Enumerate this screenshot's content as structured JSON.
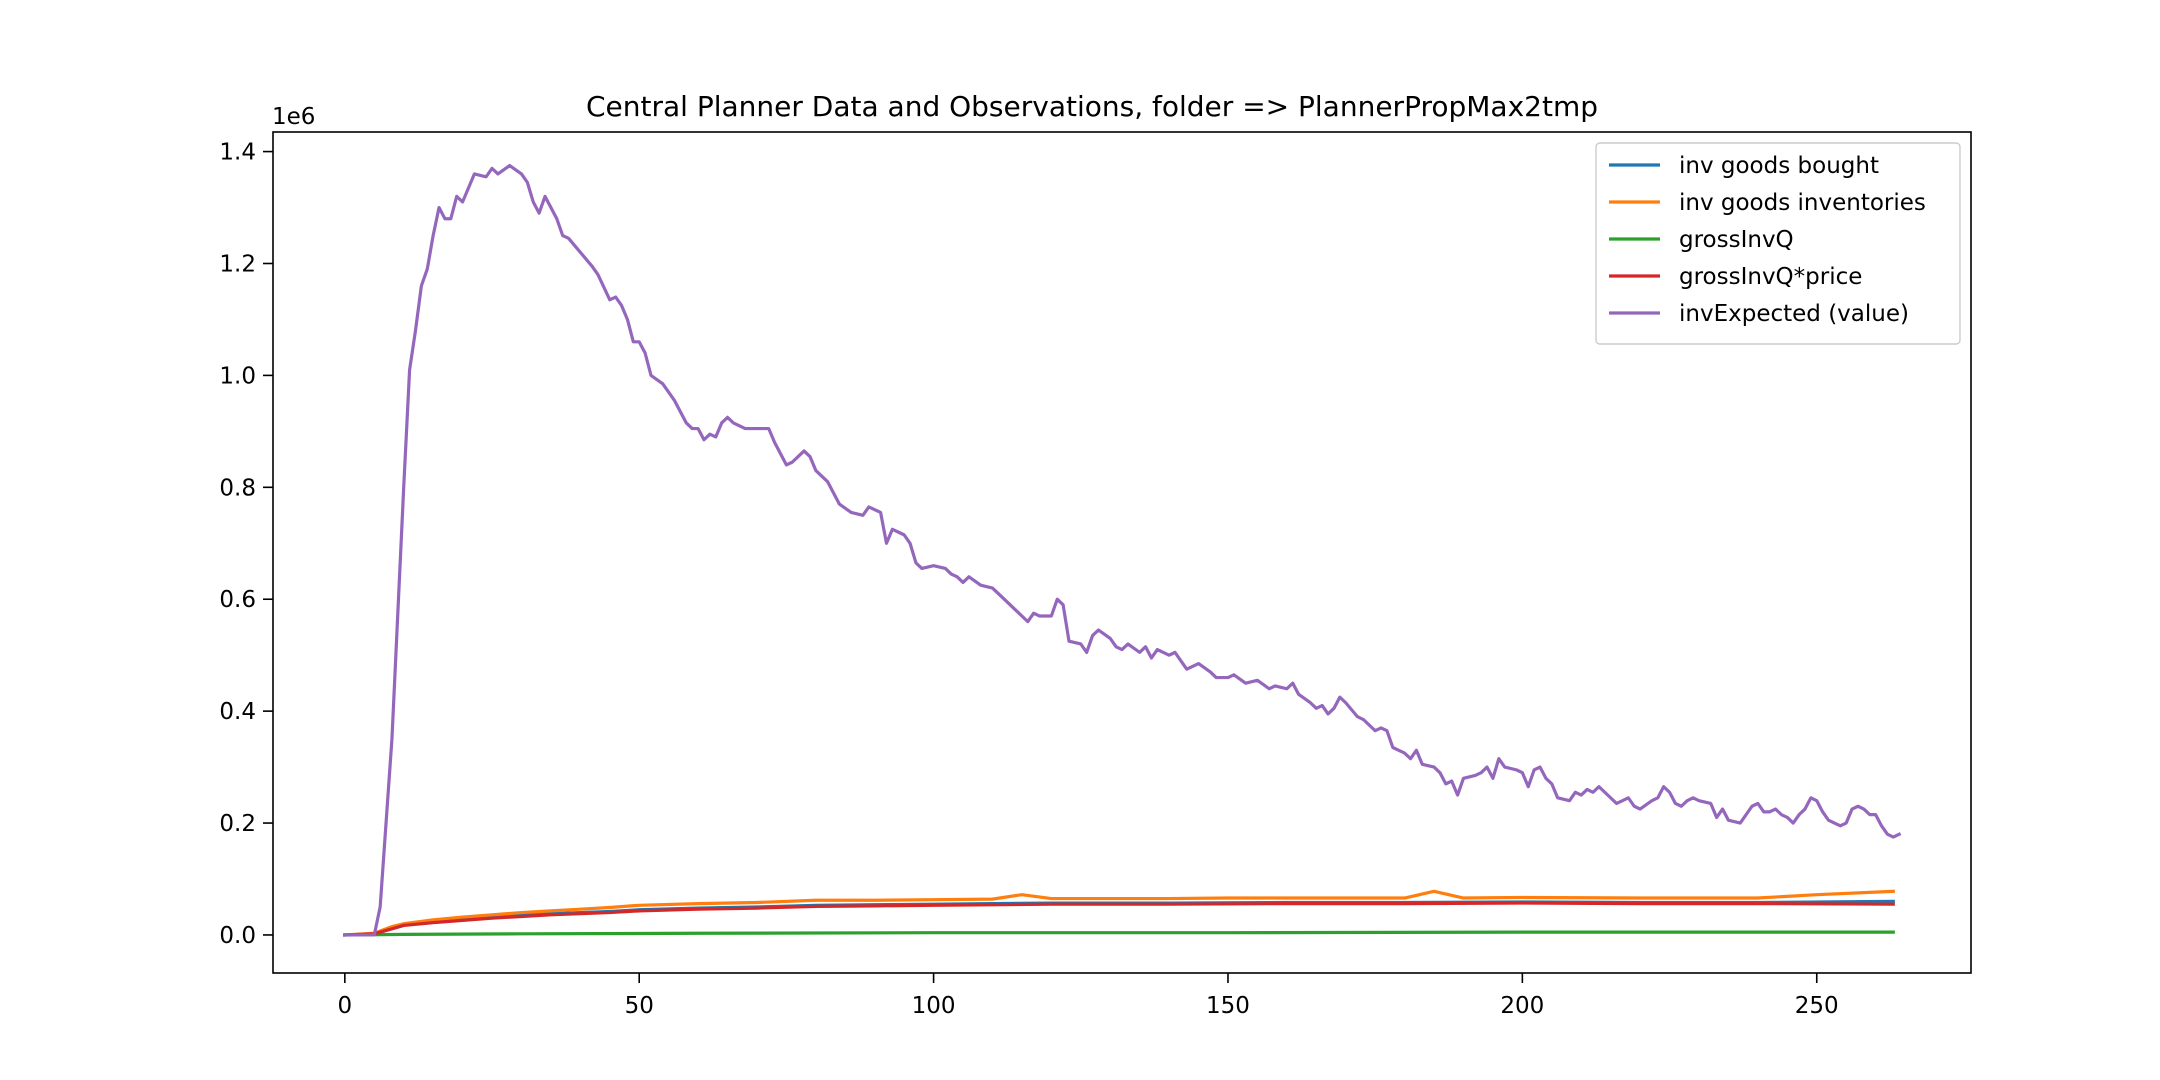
{
  "chart_data": {
    "type": "line",
    "title": "Central Planner Data and Observations, folder => PlannerPropMax2tmp",
    "xlabel": "",
    "ylabel": "",
    "y_offset_label": "1e6",
    "xlim": [
      -12.2,
      276.2
    ],
    "ylim": [
      -0.068,
      1.435
    ],
    "y_scale_note": "values in units of 1e6",
    "x_ticks": [
      0,
      50,
      100,
      150,
      200,
      250
    ],
    "x_tick_labels": [
      "0",
      "50",
      "100",
      "150",
      "200",
      "250"
    ],
    "y_ticks": [
      0.0,
      0.2,
      0.4,
      0.6,
      0.8,
      1.0,
      1.2,
      1.4
    ],
    "y_tick_labels": [
      "0.0",
      "0.2",
      "0.4",
      "0.6",
      "0.8",
      "1.0",
      "1.2",
      "1.4"
    ],
    "grid": false,
    "legend_position": "top-right",
    "series": [
      {
        "name": "inv goods bought",
        "color": "#1f77b4",
        "points": [
          [
            0,
            0
          ],
          [
            5,
            0.002
          ],
          [
            8,
            0.012
          ],
          [
            10,
            0.018
          ],
          [
            15,
            0.024
          ],
          [
            20,
            0.028
          ],
          [
            25,
            0.032
          ],
          [
            30,
            0.036
          ],
          [
            35,
            0.038
          ],
          [
            40,
            0.04
          ],
          [
            45,
            0.042
          ],
          [
            50,
            0.045
          ],
          [
            60,
            0.048
          ],
          [
            70,
            0.05
          ],
          [
            80,
            0.053
          ],
          [
            90,
            0.054
          ],
          [
            100,
            0.055
          ],
          [
            120,
            0.057
          ],
          [
            140,
            0.057
          ],
          [
            160,
            0.058
          ],
          [
            180,
            0.058
          ],
          [
            200,
            0.059
          ],
          [
            220,
            0.058
          ],
          [
            240,
            0.058
          ],
          [
            263,
            0.06
          ]
        ]
      },
      {
        "name": "inv goods inventories",
        "color": "#ff7f0e",
        "points": [
          [
            0,
            0
          ],
          [
            5,
            0.003
          ],
          [
            8,
            0.015
          ],
          [
            10,
            0.02
          ],
          [
            15,
            0.027
          ],
          [
            20,
            0.032
          ],
          [
            25,
            0.036
          ],
          [
            30,
            0.04
          ],
          [
            35,
            0.043
          ],
          [
            40,
            0.046
          ],
          [
            45,
            0.049
          ],
          [
            50,
            0.053
          ],
          [
            60,
            0.056
          ],
          [
            70,
            0.058
          ],
          [
            80,
            0.062
          ],
          [
            90,
            0.062
          ],
          [
            100,
            0.063
          ],
          [
            110,
            0.064
          ],
          [
            115,
            0.072
          ],
          [
            120,
            0.065
          ],
          [
            140,
            0.065
          ],
          [
            150,
            0.066
          ],
          [
            160,
            0.066
          ],
          [
            170,
            0.066
          ],
          [
            180,
            0.066
          ],
          [
            185,
            0.078
          ],
          [
            190,
            0.066
          ],
          [
            200,
            0.067
          ],
          [
            220,
            0.066
          ],
          [
            240,
            0.066
          ],
          [
            250,
            0.072
          ],
          [
            263,
            0.078
          ]
        ]
      },
      {
        "name": "grossInvQ",
        "color": "#2ca02c",
        "points": [
          [
            0,
            0
          ],
          [
            10,
            0.001
          ],
          [
            30,
            0.002
          ],
          [
            60,
            0.003
          ],
          [
            100,
            0.004
          ],
          [
            150,
            0.004
          ],
          [
            200,
            0.005
          ],
          [
            263,
            0.005
          ]
        ]
      },
      {
        "name": "grossInvQ*price",
        "color": "#d62728",
        "points": [
          [
            0,
            0
          ],
          [
            5,
            0.002
          ],
          [
            8,
            0.011
          ],
          [
            10,
            0.017
          ],
          [
            15,
            0.022
          ],
          [
            20,
            0.026
          ],
          [
            25,
            0.03
          ],
          [
            30,
            0.033
          ],
          [
            35,
            0.036
          ],
          [
            40,
            0.038
          ],
          [
            45,
            0.04
          ],
          [
            50,
            0.043
          ],
          [
            60,
            0.046
          ],
          [
            70,
            0.048
          ],
          [
            80,
            0.051
          ],
          [
            90,
            0.052
          ],
          [
            100,
            0.053
          ],
          [
            120,
            0.055
          ],
          [
            140,
            0.055
          ],
          [
            160,
            0.056
          ],
          [
            180,
            0.056
          ],
          [
            200,
            0.057
          ],
          [
            220,
            0.056
          ],
          [
            240,
            0.056
          ],
          [
            263,
            0.055
          ]
        ]
      },
      {
        "name": "invExpected (value)",
        "color": "#9467bd",
        "points": [
          [
            0,
            0
          ],
          [
            5,
            0.0
          ],
          [
            6,
            0.05
          ],
          [
            8,
            0.35
          ],
          [
            10,
            0.8
          ],
          [
            11,
            1.01
          ],
          [
            12,
            1.08
          ],
          [
            13,
            1.16
          ],
          [
            14,
            1.19
          ],
          [
            15,
            1.25
          ],
          [
            16,
            1.3
          ],
          [
            17,
            1.28
          ],
          [
            18,
            1.28
          ],
          [
            19,
            1.32
          ],
          [
            20,
            1.31
          ],
          [
            22,
            1.36
          ],
          [
            24,
            1.355
          ],
          [
            25,
            1.37
          ],
          [
            26,
            1.36
          ],
          [
            28,
            1.375
          ],
          [
            30,
            1.36
          ],
          [
            31,
            1.345
          ],
          [
            32,
            1.31
          ],
          [
            33,
            1.29
          ],
          [
            34,
            1.32
          ],
          [
            35,
            1.3
          ],
          [
            36,
            1.28
          ],
          [
            37,
            1.25
          ],
          [
            38,
            1.245
          ],
          [
            40,
            1.22
          ],
          [
            42,
            1.195
          ],
          [
            43,
            1.18
          ],
          [
            45,
            1.135
          ],
          [
            46,
            1.14
          ],
          [
            47,
            1.125
          ],
          [
            48,
            1.1
          ],
          [
            49,
            1.06
          ],
          [
            50,
            1.06
          ],
          [
            51,
            1.04
          ],
          [
            52,
            1.0
          ],
          [
            54,
            0.985
          ],
          [
            56,
            0.955
          ],
          [
            58,
            0.915
          ],
          [
            59,
            0.905
          ],
          [
            60,
            0.905
          ],
          [
            61,
            0.885
          ],
          [
            62,
            0.895
          ],
          [
            63,
            0.89
          ],
          [
            64,
            0.915
          ],
          [
            65,
            0.925
          ],
          [
            66,
            0.915
          ],
          [
            68,
            0.905
          ],
          [
            70,
            0.905
          ],
          [
            72,
            0.905
          ],
          [
            73,
            0.88
          ],
          [
            75,
            0.84
          ],
          [
            76,
            0.845
          ],
          [
            78,
            0.865
          ],
          [
            79,
            0.855
          ],
          [
            80,
            0.83
          ],
          [
            82,
            0.81
          ],
          [
            84,
            0.77
          ],
          [
            86,
            0.755
          ],
          [
            88,
            0.75
          ],
          [
            89,
            0.765
          ],
          [
            90,
            0.76
          ],
          [
            91,
            0.755
          ],
          [
            92,
            0.7
          ],
          [
            93,
            0.725
          ],
          [
            95,
            0.715
          ],
          [
            96,
            0.7
          ],
          [
            97,
            0.665
          ],
          [
            98,
            0.655
          ],
          [
            100,
            0.66
          ],
          [
            102,
            0.655
          ],
          [
            103,
            0.645
          ],
          [
            104,
            0.64
          ],
          [
            105,
            0.63
          ],
          [
            106,
            0.64
          ],
          [
            108,
            0.625
          ],
          [
            110,
            0.62
          ],
          [
            112,
            0.6
          ],
          [
            114,
            0.58
          ],
          [
            116,
            0.56
          ],
          [
            117,
            0.575
          ],
          [
            118,
            0.57
          ],
          [
            120,
            0.57
          ],
          [
            121,
            0.6
          ],
          [
            122,
            0.59
          ],
          [
            123,
            0.525
          ],
          [
            125,
            0.52
          ],
          [
            126,
            0.505
          ],
          [
            127,
            0.535
          ],
          [
            128,
            0.545
          ],
          [
            130,
            0.53
          ],
          [
            131,
            0.515
          ],
          [
            132,
            0.51
          ],
          [
            133,
            0.52
          ],
          [
            135,
            0.505
          ],
          [
            136,
            0.515
          ],
          [
            137,
            0.495
          ],
          [
            138,
            0.51
          ],
          [
            140,
            0.5
          ],
          [
            141,
            0.505
          ],
          [
            142,
            0.49
          ],
          [
            143,
            0.475
          ],
          [
            145,
            0.485
          ],
          [
            147,
            0.47
          ],
          [
            148,
            0.46
          ],
          [
            150,
            0.46
          ],
          [
            151,
            0.465
          ],
          [
            153,
            0.45
          ],
          [
            155,
            0.455
          ],
          [
            157,
            0.44
          ],
          [
            158,
            0.445
          ],
          [
            160,
            0.44
          ],
          [
            161,
            0.45
          ],
          [
            162,
            0.43
          ],
          [
            164,
            0.415
          ],
          [
            165,
            0.405
          ],
          [
            166,
            0.41
          ],
          [
            167,
            0.395
          ],
          [
            168,
            0.405
          ],
          [
            169,
            0.425
          ],
          [
            170,
            0.415
          ],
          [
            172,
            0.39
          ],
          [
            173,
            0.385
          ],
          [
            174,
            0.375
          ],
          [
            175,
            0.365
          ],
          [
            176,
            0.37
          ],
          [
            177,
            0.365
          ],
          [
            178,
            0.335
          ],
          [
            180,
            0.325
          ],
          [
            181,
            0.315
          ],
          [
            182,
            0.33
          ],
          [
            183,
            0.305
          ],
          [
            185,
            0.3
          ],
          [
            186,
            0.29
          ],
          [
            187,
            0.27
          ],
          [
            188,
            0.275
          ],
          [
            189,
            0.25
          ],
          [
            190,
            0.28
          ],
          [
            192,
            0.285
          ],
          [
            193,
            0.29
          ],
          [
            194,
            0.3
          ],
          [
            195,
            0.28
          ],
          [
            196,
            0.315
          ],
          [
            197,
            0.3
          ],
          [
            199,
            0.295
          ],
          [
            200,
            0.29
          ],
          [
            201,
            0.265
          ],
          [
            202,
            0.295
          ],
          [
            203,
            0.3
          ],
          [
            204,
            0.28
          ],
          [
            205,
            0.27
          ],
          [
            206,
            0.245
          ],
          [
            208,
            0.24
          ],
          [
            209,
            0.255
          ],
          [
            210,
            0.25
          ],
          [
            211,
            0.26
          ],
          [
            212,
            0.255
          ],
          [
            213,
            0.265
          ],
          [
            214,
            0.255
          ],
          [
            215,
            0.245
          ],
          [
            216,
            0.235
          ],
          [
            217,
            0.24
          ],
          [
            218,
            0.245
          ],
          [
            219,
            0.23
          ],
          [
            220,
            0.225
          ],
          [
            222,
            0.24
          ],
          [
            223,
            0.245
          ],
          [
            224,
            0.265
          ],
          [
            225,
            0.255
          ],
          [
            226,
            0.235
          ],
          [
            227,
            0.23
          ],
          [
            228,
            0.24
          ],
          [
            229,
            0.245
          ],
          [
            230,
            0.24
          ],
          [
            232,
            0.235
          ],
          [
            233,
            0.21
          ],
          [
            234,
            0.225
          ],
          [
            235,
            0.205
          ],
          [
            237,
            0.2
          ],
          [
            238,
            0.215
          ],
          [
            239,
            0.23
          ],
          [
            240,
            0.235
          ],
          [
            241,
            0.22
          ],
          [
            242,
            0.22
          ],
          [
            243,
            0.225
          ],
          [
            244,
            0.215
          ],
          [
            245,
            0.21
          ],
          [
            246,
            0.2
          ],
          [
            247,
            0.215
          ],
          [
            248,
            0.225
          ],
          [
            249,
            0.245
          ],
          [
            250,
            0.24
          ],
          [
            251,
            0.22
          ],
          [
            252,
            0.205
          ],
          [
            253,
            0.2
          ],
          [
            254,
            0.195
          ],
          [
            255,
            0.2
          ],
          [
            256,
            0.225
          ],
          [
            257,
            0.23
          ],
          [
            258,
            0.225
          ],
          [
            259,
            0.215
          ],
          [
            260,
            0.215
          ],
          [
            261,
            0.195
          ],
          [
            262,
            0.18
          ],
          [
            263,
            0.175
          ],
          [
            264,
            0.18
          ]
        ]
      }
    ]
  }
}
